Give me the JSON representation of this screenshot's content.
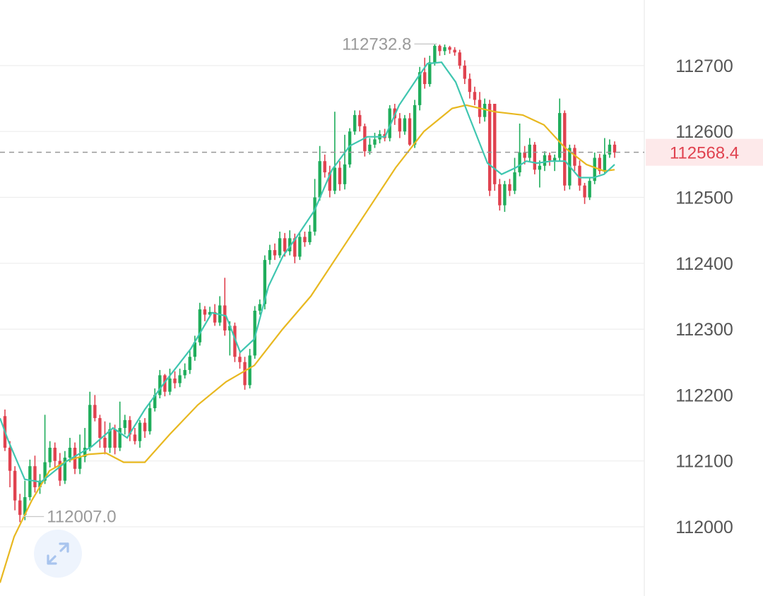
{
  "chart_data": {
    "type": "candlestick",
    "y_axis": {
      "ticks": [
        112000,
        112100,
        112200,
        112300,
        112400,
        112500,
        112600,
        112700
      ],
      "range": [
        111915,
        112790
      ],
      "position": "right"
    },
    "grid": true,
    "current_price": {
      "value": 112568.4,
      "label": "112568.4"
    },
    "annotations": [
      {
        "label": "112732.8",
        "value": 112732.8,
        "type": "max"
      },
      {
        "label": "112007.0",
        "value": 112007.0,
        "type": "min"
      }
    ],
    "colors": {
      "up": "#1fad5b",
      "down": "#e0424f",
      "ma_fast": "#3fc6b0",
      "ma_slow": "#e8b820",
      "grid": "#eeeeee",
      "current_line": "#999999"
    },
    "candles": [
      [
        112168,
        112120,
        112178,
        112115
      ],
      [
        112120,
        112085,
        112130,
        112060
      ],
      [
        112085,
        112040,
        112092,
        112025
      ],
      [
        112040,
        112018,
        112050,
        112007
      ],
      [
        112018,
        112045,
        112070,
        112010
      ],
      [
        112045,
        112092,
        112102,
        112040
      ],
      [
        112092,
        112060,
        112108,
        112052
      ],
      [
        112060,
        112070,
        112080,
        112050
      ],
      [
        112070,
        112098,
        112170,
        112065
      ],
      [
        112098,
        112120,
        112130,
        112090
      ],
      [
        112120,
        112100,
        112128,
        112090
      ],
      [
        112100,
        112070,
        112112,
        112062
      ],
      [
        112070,
        112105,
        112115,
        112065
      ],
      [
        112105,
        112120,
        112135,
        112098
      ],
      [
        112120,
        112088,
        112128,
        112080
      ],
      [
        112088,
        112106,
        112140,
        112080
      ],
      [
        112106,
        112120,
        112150,
        112098
      ],
      [
        112120,
        112185,
        112205,
        112115
      ],
      [
        112185,
        112165,
        112200,
        112160
      ],
      [
        112165,
        112135,
        112170,
        112120
      ],
      [
        112135,
        112120,
        112160,
        112110
      ],
      [
        112120,
        112148,
        112158,
        112112
      ],
      [
        112148,
        112120,
        112155,
        112110
      ],
      [
        112120,
        112150,
        112190,
        112115
      ],
      [
        112150,
        112162,
        112170,
        112140
      ],
      [
        112162,
        112140,
        112168,
        112130
      ],
      [
        112140,
        112130,
        112150,
        112125
      ],
      [
        112130,
        112158,
        112162,
        112120
      ],
      [
        112158,
        112145,
        112165,
        112135
      ],
      [
        112145,
        112180,
        112190,
        112140
      ],
      [
        112180,
        112200,
        112210,
        112175
      ],
      [
        112200,
        112230,
        112238,
        112195
      ],
      [
        112230,
        112205,
        112232,
        112198
      ],
      [
        112205,
        112225,
        112240,
        112200
      ],
      [
        112225,
        112218,
        112236,
        112210
      ],
      [
        112218,
        112230,
        112240,
        112212
      ],
      [
        112230,
        112238,
        112248,
        112225
      ],
      [
        112238,
        112258,
        112268,
        112232
      ],
      [
        112258,
        112280,
        112290,
        112252
      ],
      [
        112280,
        112330,
        112340,
        112275
      ],
      [
        112330,
        112322,
        112335,
        112312
      ],
      [
        112322,
        112326,
        112334,
        112318
      ],
      [
        112326,
        112310,
        112338,
        112305
      ],
      [
        112310,
        112336,
        112350,
        112305
      ],
      [
        112336,
        112298,
        112378,
        112290
      ],
      [
        112298,
        112305,
        112312,
        112260
      ],
      [
        112305,
        112258,
        112310,
        112250
      ],
      [
        112258,
        112250,
        112266,
        112240
      ],
      [
        112250,
        112215,
        112258,
        112208
      ],
      [
        112215,
        112260,
        112270,
        112210
      ],
      [
        112260,
        112328,
        112335,
        112255
      ],
      [
        112328,
        112338,
        112345,
        112322
      ],
      [
        112338,
        112405,
        112412,
        112330
      ],
      [
        112405,
        112420,
        112428,
        112398
      ],
      [
        112420,
        112412,
        112430,
        112405
      ],
      [
        112412,
        112438,
        112448,
        112408
      ],
      [
        112438,
        112418,
        112446,
        112410
      ],
      [
        112418,
        112438,
        112450,
        112412
      ],
      [
        112438,
        112410,
        112445,
        112400
      ],
      [
        112410,
        112440,
        112448,
        112405
      ],
      [
        112440,
        112432,
        112448,
        112425
      ],
      [
        112432,
        112448,
        112458,
        112428
      ],
      [
        112448,
        112500,
        112528,
        112442
      ],
      [
        112500,
        112555,
        112578,
        112495
      ],
      [
        112555,
        112538,
        112565,
        112530
      ],
      [
        112538,
        112510,
        112548,
        112500
      ],
      [
        112510,
        112545,
        112630,
        112505
      ],
      [
        112545,
        112520,
        112555,
        112510
      ],
      [
        112520,
        112550,
        112595,
        112512
      ],
      [
        112550,
        112600,
        112605,
        112545
      ],
      [
        112600,
        112625,
        112632,
        112595
      ],
      [
        112625,
        112608,
        112632,
        112600
      ],
      [
        112608,
        112570,
        112612,
        112562
      ],
      [
        112570,
        112580,
        112590,
        112565
      ],
      [
        112580,
        112588,
        112598,
        112575
      ],
      [
        112588,
        112596,
        112602,
        112582
      ],
      [
        112596,
        112590,
        112604,
        112585
      ],
      [
        112590,
        112635,
        112640,
        112585
      ],
      [
        112635,
        112620,
        112642,
        112610
      ],
      [
        112620,
        112600,
        112628,
        112590
      ],
      [
        112600,
        112620,
        112625,
        112595
      ],
      [
        112620,
        112580,
        112628,
        112578
      ],
      [
        112580,
        112640,
        112648,
        112575
      ],
      [
        112640,
        112690,
        112698,
        112632
      ],
      [
        112690,
        112672,
        112712,
        112665
      ],
      [
        112672,
        112705,
        112715,
        112668
      ],
      [
        112705,
        112730,
        112733,
        112700
      ],
      [
        112730,
        112722,
        112732,
        112715
      ],
      [
        112722,
        112728,
        112732,
        112716
      ],
      [
        112728,
        112724,
        112730,
        112718
      ],
      [
        112724,
        112720,
        112728,
        112715
      ],
      [
        112720,
        112700,
        112724,
        112695
      ],
      [
        112700,
        112680,
        112708,
        112672
      ],
      [
        112680,
        112660,
        112688,
        112650
      ],
      [
        112660,
        112648,
        112668,
        112640
      ],
      [
        112648,
        112622,
        112660,
        112612
      ],
      [
        112622,
        112642,
        112650,
        112615
      ],
      [
        112642,
        112510,
        112648,
        112502
      ],
      [
        112642,
        112520,
        112545,
        112510
      ],
      [
        112520,
        112488,
        112528,
        112480
      ],
      [
        112488,
        112520,
        112525,
        112478
      ],
      [
        112520,
        112510,
        112528,
        112502
      ],
      [
        112510,
        112538,
        112560,
        112505
      ],
      [
        112538,
        112568,
        112612,
        112532
      ],
      [
        112568,
        112560,
        112578,
        112550
      ],
      [
        112560,
        112580,
        112590,
        112555
      ],
      [
        112580,
        112542,
        112584,
        112535
      ],
      [
        112542,
        112548,
        112556,
        112515
      ],
      [
        112548,
        112564,
        112570,
        112540
      ],
      [
        112564,
        112556,
        112568,
        112548
      ],
      [
        112556,
        112560,
        112565,
        112540
      ],
      [
        112560,
        112628,
        112650,
        112555
      ],
      [
        112628,
        112518,
        112632,
        112510
      ],
      [
        112518,
        112575,
        112580,
        112512
      ],
      [
        112575,
        112548,
        112580,
        112540
      ],
      [
        112548,
        112518,
        112556,
        112510
      ],
      [
        112518,
        112500,
        112522,
        112490
      ],
      [
        112500,
        112525,
        112530,
        112496
      ],
      [
        112525,
        112560,
        112568,
        112520
      ],
      [
        112560,
        112540,
        112566,
        112535
      ],
      [
        112540,
        112565,
        112590,
        112535
      ],
      [
        112565,
        112580,
        112588,
        112560
      ],
      [
        112580,
        112568,
        112585,
        112560
      ]
    ],
    "ma_fast": [
      [
        0,
        112165
      ],
      [
        12,
        112130
      ],
      [
        35,
        112072
      ],
      [
        58,
        112068
      ],
      [
        95,
        112100
      ],
      [
        130,
        112122
      ],
      [
        160,
        112150
      ],
      [
        180,
        112135
      ],
      [
        205,
        112178
      ],
      [
        235,
        112222
      ],
      [
        270,
        112270
      ],
      [
        300,
        112325
      ],
      [
        320,
        112320
      ],
      [
        340,
        112265
      ],
      [
        360,
        112285
      ],
      [
        380,
        112365
      ],
      [
        400,
        112410
      ],
      [
        420,
        112440
      ],
      [
        445,
        112480
      ],
      [
        470,
        112542
      ],
      [
        495,
        112578
      ],
      [
        520,
        112592
      ],
      [
        545,
        112592
      ],
      [
        565,
        112640
      ],
      [
        590,
        112680
      ],
      [
        605,
        112703
      ],
      [
        625,
        112705
      ],
      [
        645,
        112675
      ],
      [
        665,
        112620
      ],
      [
        690,
        112552
      ],
      [
        710,
        112535
      ],
      [
        730,
        112545
      ],
      [
        745,
        112555
      ],
      [
        760,
        112552
      ],
      [
        780,
        112555
      ],
      [
        800,
        112555
      ],
      [
        820,
        112530
      ],
      [
        840,
        112530
      ],
      [
        855,
        112535
      ],
      [
        870,
        112550
      ]
    ],
    "ma_slow": [
      [
        0,
        111915
      ],
      [
        20,
        111985
      ],
      [
        45,
        112040
      ],
      [
        70,
        112085
      ],
      [
        95,
        112100
      ],
      [
        125,
        112110
      ],
      [
        150,
        112112
      ],
      [
        175,
        112098
      ],
      [
        205,
        112098
      ],
      [
        240,
        112140
      ],
      [
        280,
        112185
      ],
      [
        320,
        112220
      ],
      [
        360,
        112245
      ],
      [
        400,
        112300
      ],
      [
        440,
        112350
      ],
      [
        480,
        112415
      ],
      [
        520,
        112480
      ],
      [
        560,
        112545
      ],
      [
        600,
        112600
      ],
      [
        640,
        112635
      ],
      [
        660,
        112640
      ],
      [
        700,
        112630
      ],
      [
        740,
        112625
      ],
      [
        770,
        112610
      ],
      [
        800,
        112575
      ],
      [
        830,
        112550
      ],
      [
        855,
        112540
      ],
      [
        870,
        112542
      ]
    ]
  }
}
